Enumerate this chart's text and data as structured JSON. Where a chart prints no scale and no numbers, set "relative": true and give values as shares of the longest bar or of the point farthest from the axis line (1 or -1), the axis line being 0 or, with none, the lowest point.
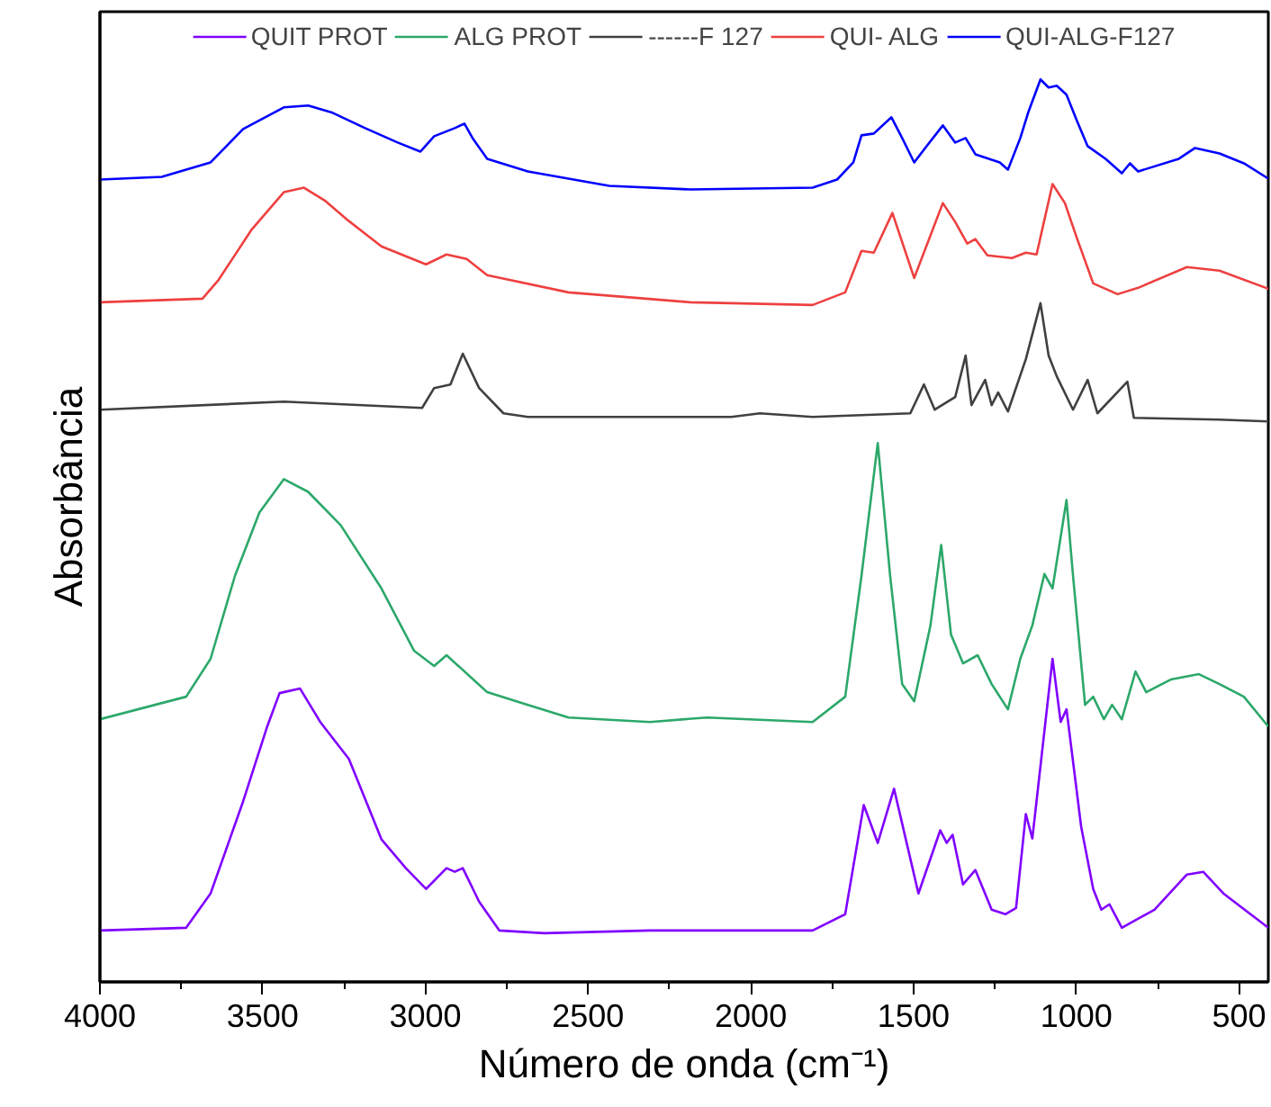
{
  "chart_data": {
    "type": "line",
    "relative": true,
    "xlabel": "Número de onda (cm⁻¹)",
    "ylabel": "Absorbância",
    "xlim": [
      4000,
      410
    ],
    "xticks": [
      4000,
      3500,
      3000,
      2500,
      2000,
      1500,
      1000,
      500
    ],
    "grid": false,
    "legend": "top",
    "line_style": "solid",
    "marker": "none",
    "series": [
      {
        "name": "QUIT PROT",
        "color": "#8000ff",
        "x": [
          4000,
          3735,
          3660,
          3560,
          3485,
          3448,
          3385,
          3323,
          3235,
          3135,
          3060,
          2998,
          2935,
          2910,
          2885,
          2835,
          2773,
          2635,
          2310,
          1810,
          1710,
          1653,
          1610,
          1560,
          1485,
          1418,
          1398,
          1380,
          1348,
          1310,
          1260,
          1218,
          1185,
          1155,
          1135,
          1073,
          1048,
          1030,
          985,
          948,
          923,
          898,
          860,
          760,
          660,
          610,
          548,
          410
        ],
        "values": [
          0.057,
          0.06,
          0.098,
          0.2,
          0.284,
          0.32,
          0.325,
          0.288,
          0.247,
          0.158,
          0.126,
          0.103,
          0.126,
          0.122,
          0.126,
          0.089,
          0.057,
          0.054,
          0.057,
          0.057,
          0.075,
          0.196,
          0.154,
          0.214,
          0.098,
          0.168,
          0.154,
          0.163,
          0.108,
          0.124,
          0.08,
          0.075,
          0.082,
          0.186,
          0.159,
          0.358,
          0.288,
          0.302,
          0.172,
          0.103,
          0.08,
          0.086,
          0.06,
          0.08,
          0.119,
          0.122,
          0.098,
          0.06
        ]
      },
      {
        "name": "ALG PROT",
        "color": "#2ca86a",
        "x": [
          4000,
          3735,
          3660,
          3585,
          3510,
          3435,
          3360,
          3260,
          3135,
          3035,
          2973,
          2935,
          2810,
          2685,
          2560,
          2310,
          2135,
          1810,
          1710,
          1660,
          1610,
          1572,
          1535,
          1498,
          1448,
          1415,
          1385,
          1348,
          1303,
          1260,
          1210,
          1172,
          1135,
          1098,
          1073,
          1030,
          1010,
          973,
          948,
          915,
          890,
          860,
          818,
          785,
          710,
          623,
          560,
          485,
          410
        ],
        "values": [
          0.291,
          0.316,
          0.358,
          0.45,
          0.52,
          0.557,
          0.543,
          0.506,
          0.436,
          0.367,
          0.35,
          0.362,
          0.321,
          0.307,
          0.293,
          0.288,
          0.293,
          0.288,
          0.316,
          0.45,
          0.597,
          0.45,
          0.33,
          0.311,
          0.395,
          0.484,
          0.385,
          0.353,
          0.362,
          0.33,
          0.302,
          0.358,
          0.395,
          0.452,
          0.436,
          0.534,
          0.45,
          0.307,
          0.316,
          0.291,
          0.307,
          0.291,
          0.344,
          0.321,
          0.335,
          0.341,
          0.33,
          0.316,
          0.283
        ]
      },
      {
        "name": "------F 127",
        "color": "#404040",
        "x": [
          4000,
          3435,
          3010,
          2973,
          2923,
          2885,
          2835,
          2760,
          2685,
          2060,
          1972,
          1810,
          1510,
          1468,
          1435,
          1372,
          1340,
          1322,
          1280,
          1260,
          1240,
          1210,
          1155,
          1110,
          1085,
          1060,
          1010,
          965,
          935,
          843,
          823,
          560,
          410
        ],
        "values": [
          0.634,
          0.643,
          0.636,
          0.658,
          0.662,
          0.696,
          0.658,
          0.63,
          0.626,
          0.626,
          0.63,
          0.626,
          0.63,
          0.662,
          0.634,
          0.648,
          0.694,
          0.639,
          0.667,
          0.639,
          0.653,
          0.632,
          0.69,
          0.752,
          0.694,
          0.671,
          0.634,
          0.667,
          0.63,
          0.665,
          0.625,
          0.623,
          0.621
        ]
      },
      {
        "name": "QUI- ALG",
        "color": "#ee4040",
        "x": [
          4000,
          3685,
          3635,
          3535,
          3435,
          3373,
          3310,
          3235,
          3135,
          2998,
          2935,
          2873,
          2810,
          2560,
          2185,
          1810,
          1710,
          1660,
          1622,
          1565,
          1498,
          1410,
          1372,
          1335,
          1310,
          1273,
          1198,
          1155,
          1122,
          1073,
          1035,
          998,
          948,
          873,
          810,
          660,
          560,
          410
        ],
        "values": [
          0.753,
          0.757,
          0.778,
          0.833,
          0.875,
          0.88,
          0.866,
          0.843,
          0.815,
          0.795,
          0.806,
          0.801,
          0.783,
          0.764,
          0.753,
          0.75,
          0.764,
          0.81,
          0.808,
          0.852,
          0.78,
          0.863,
          0.842,
          0.818,
          0.823,
          0.805,
          0.802,
          0.808,
          0.806,
          0.884,
          0.863,
          0.824,
          0.774,
          0.762,
          0.769,
          0.792,
          0.788,
          0.768
        ]
      },
      {
        "name": "QUI-ALG-F127",
        "color": "#0000ff",
        "x": [
          4000,
          3810,
          3660,
          3560,
          3435,
          3360,
          3285,
          3185,
          3085,
          3015,
          2973,
          2910,
          2880,
          2855,
          2810,
          2685,
          2435,
          2185,
          1810,
          1735,
          1685,
          1660,
          1622,
          1568,
          1535,
          1498,
          1460,
          1410,
          1372,
          1340,
          1310,
          1235,
          1210,
          1172,
          1148,
          1110,
          1085,
          1060,
          1030,
          998,
          965,
          910,
          860,
          835,
          810,
          685,
          635,
          560,
          485,
          410
        ],
        "values": [
          0.889,
          0.892,
          0.908,
          0.945,
          0.969,
          0.971,
          0.963,
          0.946,
          0.93,
          0.92,
          0.937,
          0.946,
          0.951,
          0.935,
          0.912,
          0.898,
          0.882,
          0.878,
          0.88,
          0.889,
          0.908,
          0.938,
          0.94,
          0.958,
          0.935,
          0.908,
          0.926,
          0.949,
          0.93,
          0.935,
          0.917,
          0.908,
          0.9,
          0.935,
          0.963,
          1.0,
          0.991,
          0.993,
          0.983,
          0.954,
          0.926,
          0.912,
          0.896,
          0.907,
          0.898,
          0.912,
          0.924,
          0.918,
          0.907,
          0.89
        ]
      }
    ]
  }
}
